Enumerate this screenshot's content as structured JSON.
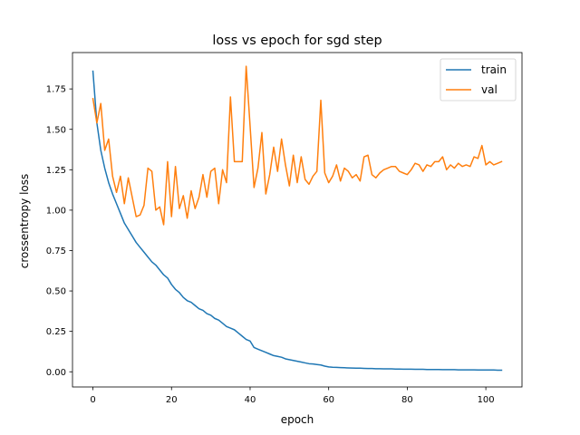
{
  "chart_data": {
    "type": "line",
    "title": "loss vs epoch for sgd step",
    "xlabel": "epoch",
    "ylabel": "crossentropy loss",
    "xlim": [
      -5.2,
      109.2
    ],
    "ylim": [
      -0.094,
      1.975
    ],
    "xticks": [
      0,
      20,
      40,
      60,
      80,
      100
    ],
    "yticks": [
      0.0,
      0.25,
      0.5,
      0.75,
      1.0,
      1.25,
      1.5,
      1.75
    ],
    "xtick_labels": [
      "0",
      "20",
      "40",
      "60",
      "80",
      "100"
    ],
    "ytick_labels": [
      "0.00",
      "0.25",
      "0.50",
      "0.75",
      "1.00",
      "1.25",
      "1.50",
      "1.75"
    ],
    "grid": false,
    "legend_position": "top-right",
    "series": [
      {
        "name": "train",
        "color": "#1f77b4",
        "values": [
          1.86,
          1.54,
          1.37,
          1.26,
          1.17,
          1.1,
          1.04,
          0.98,
          0.92,
          0.88,
          0.84,
          0.8,
          0.77,
          0.74,
          0.71,
          0.68,
          0.66,
          0.63,
          0.6,
          0.58,
          0.54,
          0.51,
          0.49,
          0.46,
          0.44,
          0.43,
          0.41,
          0.39,
          0.38,
          0.36,
          0.35,
          0.33,
          0.32,
          0.3,
          0.28,
          0.27,
          0.26,
          0.24,
          0.22,
          0.2,
          0.19,
          0.15,
          0.14,
          0.13,
          0.12,
          0.11,
          0.1,
          0.095,
          0.09,
          0.08,
          0.075,
          0.07,
          0.065,
          0.06,
          0.055,
          0.05,
          0.048,
          0.045,
          0.042,
          0.035,
          0.03,
          0.028,
          0.027,
          0.026,
          0.025,
          0.024,
          0.023,
          0.022,
          0.022,
          0.021,
          0.02,
          0.02,
          0.019,
          0.019,
          0.018,
          0.018,
          0.018,
          0.017,
          0.017,
          0.016,
          0.016,
          0.016,
          0.015,
          0.015,
          0.015,
          0.014,
          0.014,
          0.014,
          0.014,
          0.013,
          0.013,
          0.013,
          0.013,
          0.012,
          0.012,
          0.012,
          0.012,
          0.012,
          0.011,
          0.011,
          0.011,
          0.011,
          0.011,
          0.01,
          0.01
        ]
      },
      {
        "name": "val",
        "color": "#ff7f0e",
        "values": [
          1.69,
          1.54,
          1.66,
          1.37,
          1.44,
          1.21,
          1.11,
          1.21,
          1.04,
          1.2,
          1.08,
          0.96,
          0.97,
          1.03,
          1.26,
          1.24,
          1.0,
          1.02,
          0.91,
          1.3,
          0.96,
          1.27,
          1.01,
          1.09,
          0.95,
          1.12,
          1.01,
          1.08,
          1.22,
          1.08,
          1.24,
          1.26,
          1.04,
          1.25,
          1.17,
          1.7,
          1.3,
          1.3,
          1.3,
          1.89,
          1.52,
          1.14,
          1.26,
          1.48,
          1.1,
          1.22,
          1.39,
          1.24,
          1.44,
          1.28,
          1.15,
          1.34,
          1.17,
          1.33,
          1.19,
          1.16,
          1.21,
          1.24,
          1.68,
          1.23,
          1.17,
          1.21,
          1.28,
          1.18,
          1.26,
          1.24,
          1.2,
          1.22,
          1.18,
          1.33,
          1.34,
          1.22,
          1.2,
          1.23,
          1.25,
          1.26,
          1.27,
          1.27,
          1.24,
          1.23,
          1.22,
          1.25,
          1.29,
          1.28,
          1.24,
          1.28,
          1.27,
          1.3,
          1.3,
          1.33,
          1.25,
          1.28,
          1.26,
          1.29,
          1.27,
          1.28,
          1.27,
          1.33,
          1.32,
          1.4,
          1.28,
          1.3,
          1.28,
          1.29,
          1.3
        ]
      }
    ]
  }
}
